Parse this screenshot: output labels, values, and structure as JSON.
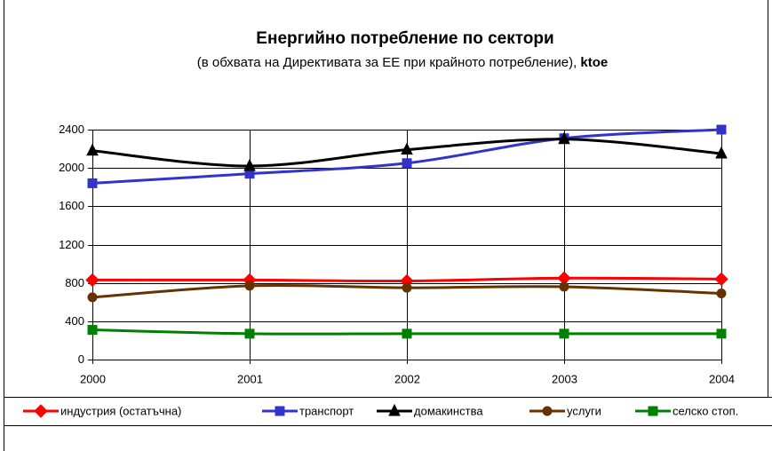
{
  "chart_data": {
    "type": "line",
    "title": "Енергийно потребление по сектори",
    "subtitle": "(в обхвата на Директивата за ЕЕ при крайното потребление),",
    "unit": "ktoe",
    "categories": [
      "2000",
      "2001",
      "2002",
      "2003",
      "2004"
    ],
    "ylim": [
      0,
      2400
    ],
    "yticks": [
      0,
      400,
      800,
      1200,
      1600,
      2000,
      2400
    ],
    "grid": true,
    "legend": "bottom",
    "series": [
      {
        "name": "индустрия (остатъчна)",
        "color": "#ff0000",
        "marker": "diamond",
        "values": [
          830,
          830,
          820,
          850,
          840
        ]
      },
      {
        "name": "транспорт",
        "color": "#3333cc",
        "marker": "square",
        "values": [
          1840,
          1940,
          2050,
          2310,
          2400
        ]
      },
      {
        "name": "домакинства",
        "color": "#000000",
        "marker": "triangle",
        "values": [
          2180,
          2020,
          2190,
          2300,
          2150
        ]
      },
      {
        "name": "услуги",
        "color": "#663300",
        "marker": "circle",
        "values": [
          650,
          770,
          750,
          760,
          690
        ]
      },
      {
        "name": "селско стоп.",
        "color": "#008000",
        "marker": "square",
        "values": [
          310,
          270,
          270,
          270,
          270
        ]
      }
    ]
  }
}
